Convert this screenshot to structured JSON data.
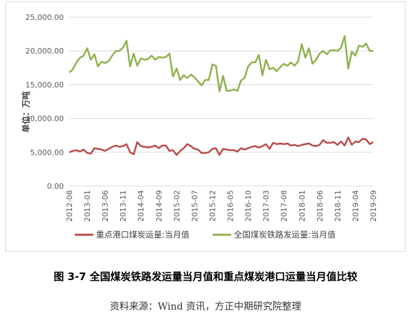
{
  "caption": "图 3-7  全国煤炭铁路发运量当月值和重点煤炭港口运量当月值比较",
  "source": "资料来源：Wind 资讯，方正中期研究院整理",
  "colors": {
    "port": "#b94a48",
    "rail": "#8db14d",
    "grid": "#d9d9d9",
    "text": "#595959"
  },
  "chart_data": {
    "type": "line",
    "ylabel": "单位：万吨",
    "ylim": [
      0,
      25000
    ],
    "yticks": [
      0,
      5000,
      10000,
      15000,
      20000,
      25000
    ],
    "ytick_labels": [
      "0.00",
      "5,000.00",
      "10,000.00",
      "15,000.00",
      "20,000.00",
      "25,000.00"
    ],
    "x_start": "2012-08",
    "x_count": 86,
    "xtick_labels": [
      "2012-08",
      "2013-01",
      "2013-06",
      "2013-11",
      "2014-04",
      "2014-09",
      "2015-02",
      "2015-07",
      "2015-12",
      "2016-05",
      "2016-10",
      "2017-03",
      "2017-08",
      "2018-01",
      "2018-06",
      "2018-11",
      "2019-04",
      "2019-09"
    ],
    "xtick_step": 5,
    "legend_position": "bottom",
    "series": [
      {
        "name": "重点港口煤炭运量:当月值",
        "color": "#b94a48",
        "values": [
          5000,
          5200,
          5300,
          5100,
          5400,
          4900,
          4800,
          5600,
          5500,
          5400,
          5200,
          5500,
          5800,
          6000,
          5800,
          5900,
          6200,
          5000,
          4700,
          6500,
          5900,
          5800,
          5700,
          5800,
          6000,
          5600,
          6000,
          6000,
          5200,
          5300,
          4600,
          5200,
          5600,
          6200,
          5900,
          5500,
          5400,
          4900,
          4900,
          5000,
          5500,
          5600,
          4600,
          5500,
          5400,
          5300,
          5300,
          5100,
          5600,
          5400,
          5600,
          5800,
          5900,
          5700,
          5900,
          6200,
          5500,
          6400,
          6200,
          6300,
          6200,
          6300,
          6000,
          6100,
          5900,
          6100,
          6200,
          6300,
          6000,
          5900,
          6100,
          6800,
          6400,
          6400,
          6500,
          6100,
          6600,
          6000,
          7200,
          6100,
          6600,
          6500,
          7000,
          6900,
          6200,
          6500
        ]
      },
      {
        "name": "全国煤炭铁路发运量:当月值",
        "color": "#8db14d",
        "values": [
          16800,
          17300,
          18300,
          19000,
          19300,
          20400,
          18700,
          19500,
          17700,
          18400,
          18200,
          18500,
          19300,
          20000,
          20000,
          20500,
          21500,
          17700,
          19600,
          17800,
          18900,
          18700,
          18800,
          19300,
          18700,
          19100,
          19000,
          19100,
          19600,
          16200,
          17400,
          15700,
          16400,
          16000,
          16500,
          16100,
          15500,
          14900,
          15700,
          15700,
          18000,
          17800,
          14000,
          16300,
          14100,
          14100,
          14300,
          14100,
          15600,
          16000,
          17700,
          18300,
          18300,
          19400,
          16400,
          18700,
          17300,
          17500,
          17000,
          17600,
          18100,
          17800,
          18300,
          17800,
          18500,
          21000,
          19000,
          20400,
          18100,
          18700,
          19600,
          20000,
          19500,
          20100,
          20100,
          20000,
          20500,
          22200,
          17400,
          19900,
          19300,
          20800,
          20600,
          21100,
          20000,
          20000
        ]
      }
    ]
  }
}
